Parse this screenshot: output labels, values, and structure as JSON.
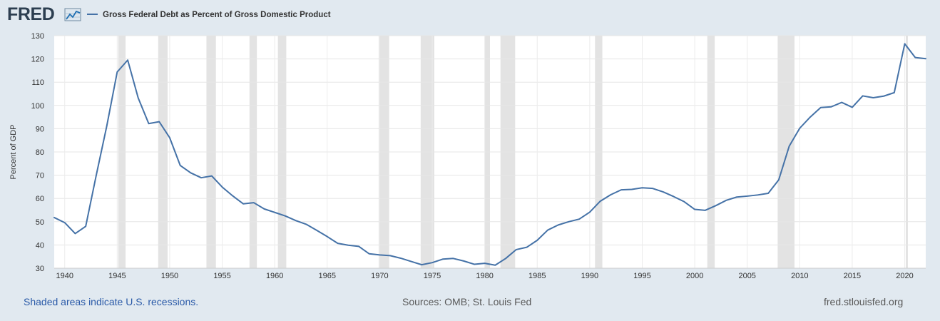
{
  "brand": {
    "logo_text": "FRED"
  },
  "chart_data": {
    "type": "line",
    "title": "Gross Federal Debt as Percent of Gross Domestic Product",
    "xlabel": "",
    "ylabel": "Percent of GDP",
    "xlim": [
      1939,
      2022
    ],
    "ylim": [
      30,
      130
    ],
    "xticks": [
      1940,
      1945,
      1950,
      1955,
      1960,
      1965,
      1970,
      1975,
      1980,
      1985,
      1990,
      1995,
      2000,
      2005,
      2010,
      2015,
      2020
    ],
    "yticks": [
      30,
      40,
      50,
      60,
      70,
      80,
      90,
      100,
      110,
      120,
      130
    ],
    "grid": true,
    "legend": "top-left",
    "series": [
      {
        "name": "Gross Federal Debt as Percent of Gross Domestic Product",
        "color": "#4572a7",
        "x": [
          1939,
          1940,
          1941,
          1942,
          1943,
          1944,
          1945,
          1946,
          1947,
          1948,
          1949,
          1950,
          1951,
          1952,
          1953,
          1954,
          1955,
          1956,
          1957,
          1958,
          1959,
          1960,
          1961,
          1962,
          1963,
          1964,
          1965,
          1966,
          1967,
          1968,
          1969,
          1970,
          1971,
          1972,
          1973,
          1974,
          1975,
          1976,
          1977,
          1978,
          1979,
          1980,
          1981,
          1982,
          1983,
          1984,
          1985,
          1986,
          1987,
          1988,
          1989,
          1990,
          1991,
          1992,
          1993,
          1994,
          1995,
          1996,
          1997,
          1998,
          1999,
          2000,
          2001,
          2002,
          2003,
          2004,
          2005,
          2006,
          2007,
          2008,
          2009,
          2010,
          2011,
          2012,
          2013,
          2014,
          2015,
          2016,
          2017,
          2018,
          2019,
          2020,
          2021,
          2022
        ],
        "values": [
          51.8,
          49.6,
          44.9,
          48.0,
          69.9,
          91.0,
          114.4,
          119.5,
          103.2,
          92.2,
          93.0,
          86.1,
          74.2,
          71.0,
          68.9,
          69.7,
          64.9,
          61.1,
          57.7,
          58.2,
          55.5,
          54.0,
          52.5,
          50.5,
          48.9,
          46.3,
          43.6,
          40.7,
          39.9,
          39.4,
          36.2,
          35.7,
          35.4,
          34.3,
          32.9,
          31.5,
          32.4,
          33.9,
          34.2,
          33.1,
          31.7,
          32.1,
          31.3,
          34.2,
          38.0,
          39.0,
          42.0,
          46.4,
          48.6,
          50.0,
          51.1,
          54.1,
          58.8,
          61.6,
          63.7,
          63.9,
          64.6,
          64.3,
          62.8,
          60.8,
          58.6,
          55.3,
          54.9,
          56.9,
          59.2,
          60.6,
          61.0,
          61.5,
          62.2,
          68.0,
          82.5,
          90.2,
          95.0,
          99.1,
          99.4,
          101.3,
          99.2,
          104.1,
          103.3,
          104.0,
          105.5,
          126.5,
          120.6,
          120.1
        ]
      }
    ],
    "recessions": [
      [
        1945.1,
        1945.8
      ],
      [
        1948.9,
        1949.8
      ],
      [
        1953.5,
        1954.4
      ],
      [
        1957.6,
        1958.3
      ],
      [
        1960.3,
        1961.1
      ],
      [
        1969.9,
        1970.9
      ],
      [
        1973.9,
        1975.2
      ],
      [
        1980.0,
        1980.5
      ],
      [
        1981.5,
        1982.9
      ],
      [
        1990.5,
        1991.2
      ],
      [
        2001.2,
        2001.9
      ],
      [
        2007.9,
        2009.5
      ],
      [
        2020.1,
        2020.3
      ]
    ]
  },
  "footer": {
    "recession_note": "Shaded areas indicate U.S. recessions.",
    "sources": "Sources: OMB; St. Louis Fed",
    "site": "fred.stlouisfed.org"
  }
}
